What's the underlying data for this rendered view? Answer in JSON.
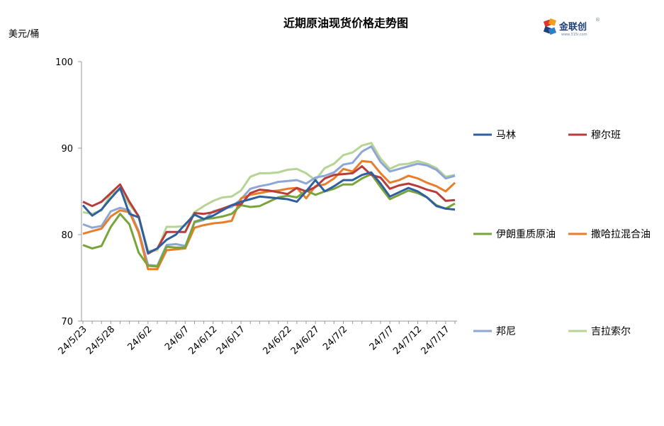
{
  "chart_data": {
    "type": "line",
    "title": "近期原油现货价格走势图",
    "ylabel": "美元/桶",
    "ylim": [
      70,
      100
    ],
    "yticks": [
      70,
      80,
      90,
      100
    ],
    "x_tick_labels": [
      "24/5/23",
      "24/5/28",
      "24/6/2",
      "24/6/7",
      "24/6/12",
      "24/6/17",
      "24/6/22",
      "24/6/27",
      "24/7/2",
      "24/7/7",
      "24/7/12",
      "24/7/17"
    ],
    "x": [
      "24/5/23",
      "24/5/24",
      "24/5/27",
      "24/5/28",
      "24/5/29",
      "24/5/30",
      "24/5/31",
      "24/6/3",
      "24/6/4",
      "24/6/5",
      "24/6/6",
      "24/6/7",
      "24/6/10",
      "24/6/11",
      "24/6/12",
      "24/6/13",
      "24/6/14",
      "24/6/17",
      "24/6/18",
      "24/6/19",
      "24/6/20",
      "24/6/21",
      "24/6/24",
      "24/6/25",
      "24/6/26",
      "24/6/27",
      "24/6/28",
      "24/7/1",
      "24/7/2",
      "24/7/3",
      "24/7/4",
      "24/7/5",
      "24/7/8",
      "24/7/9",
      "24/7/10",
      "24/7/11",
      "24/7/12",
      "24/7/15",
      "24/7/16",
      "24/7/17",
      "24/7/18"
    ],
    "grid": false,
    "legend_placement": "right",
    "series": [
      {
        "name": "马林",
        "color": "#2e5f9e",
        "values": [
          83.4,
          82.2,
          82.9,
          84.2,
          85.4,
          82.4,
          82.0,
          77.9,
          78.4,
          79.4,
          80.0,
          81.2,
          82.3,
          81.8,
          82.2,
          82.8,
          83.4,
          83.8,
          84.1,
          84.4,
          84.3,
          84.2,
          84.1,
          83.8,
          85.0,
          86.3,
          85.0,
          85.6,
          86.3,
          86.3,
          86.9,
          87.2,
          85.9,
          84.4,
          84.9,
          85.4,
          85.0,
          84.3,
          83.3,
          83.0,
          82.9
        ]
      },
      {
        "name": "穆尔班",
        "color": "#b93c3a",
        "values": [
          83.8,
          83.3,
          83.8,
          84.8,
          85.8,
          83.8,
          82.1,
          77.8,
          78.4,
          80.3,
          80.3,
          80.3,
          82.5,
          82.4,
          82.6,
          83.0,
          83.4,
          83.5,
          84.8,
          85.2,
          85.1,
          84.9,
          84.7,
          85.4,
          85.0,
          85.5,
          86.5,
          86.9,
          87.0,
          87.1,
          87.9,
          86.9,
          86.6,
          85.3,
          85.7,
          85.9,
          85.6,
          85.2,
          84.9,
          83.9,
          84.0
        ]
      },
      {
        "name": "伊朗重质原油",
        "color": "#78a43a",
        "values": [
          78.8,
          78.4,
          78.7,
          80.9,
          82.4,
          81.2,
          77.9,
          76.4,
          76.3,
          78.6,
          78.5,
          78.5,
          81.5,
          81.8,
          81.9,
          82.1,
          82.4,
          83.4,
          83.2,
          83.3,
          83.8,
          84.3,
          84.5,
          84.3,
          85.1,
          84.6,
          85.0,
          85.3,
          85.8,
          85.8,
          86.5,
          87.0,
          85.5,
          84.1,
          84.6,
          85.1,
          84.8,
          84.3,
          83.4,
          83.0,
          83.6
        ]
      },
      {
        "name": "撒哈拉混合油",
        "color": "#e87d2c",
        "values": [
          80.1,
          80.4,
          80.7,
          82.1,
          82.8,
          82.6,
          80.2,
          76.0,
          76.0,
          78.2,
          78.3,
          78.4,
          80.8,
          81.1,
          81.3,
          81.4,
          81.6,
          84.2,
          84.6,
          84.8,
          85.0,
          85.1,
          85.3,
          85.4,
          84.2,
          85.6,
          85.8,
          86.5,
          87.6,
          87.3,
          88.5,
          88.4,
          87.1,
          86.0,
          86.3,
          86.8,
          86.5,
          86.0,
          85.6,
          85.0,
          86.0
        ]
      },
      {
        "name": "邦尼",
        "color": "#8ea6d6",
        "values": [
          81.2,
          80.8,
          81.0,
          82.7,
          83.1,
          82.8,
          80.4,
          76.5,
          76.4,
          78.8,
          78.9,
          78.7,
          81.4,
          81.7,
          82.7,
          83.0,
          83.2,
          84.1,
          85.3,
          85.6,
          85.8,
          86.1,
          86.2,
          86.3,
          85.9,
          86.6,
          86.8,
          87.2,
          88.1,
          88.3,
          89.6,
          90.2,
          88.4,
          87.3,
          87.6,
          87.9,
          88.2,
          88.0,
          87.5,
          86.5,
          86.8
        ]
      },
      {
        "name": "吉拉索尔",
        "color": "#b6d494",
        "values": [
          82.6,
          82.4,
          82.8,
          84.7,
          85.2,
          83.5,
          82.1,
          78.1,
          78.2,
          80.9,
          80.9,
          81.0,
          82.6,
          83.3,
          83.9,
          84.3,
          84.4,
          85.1,
          86.7,
          87.1,
          87.1,
          87.2,
          87.5,
          87.6,
          87.1,
          86.3,
          87.7,
          88.2,
          89.2,
          89.5,
          90.3,
          90.6,
          88.8,
          87.6,
          88.1,
          88.2,
          88.5,
          88.2,
          87.7,
          86.7,
          86.9
        ]
      }
    ]
  }
}
